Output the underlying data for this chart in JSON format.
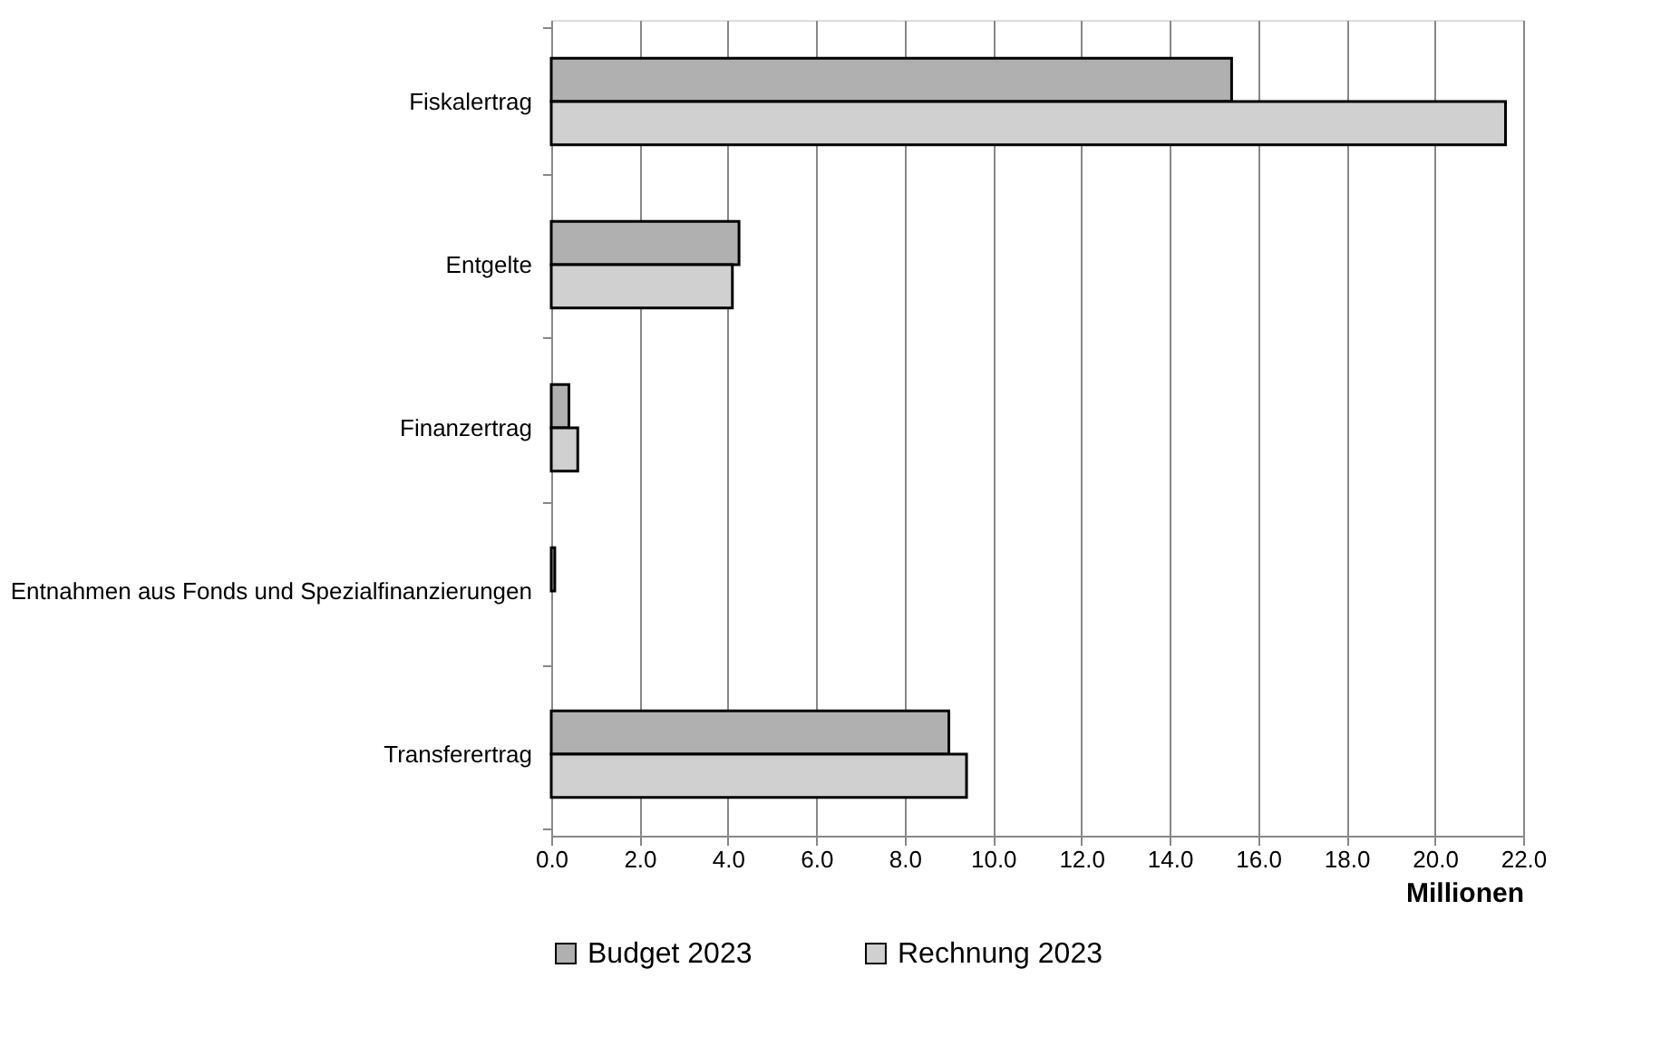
{
  "chart_data": {
    "type": "bar",
    "orientation": "horizontal",
    "xlabel": "Millionen",
    "categories": [
      "Fiskalertrag",
      "Entgelte",
      "Finanzertrag",
      "Entnahmen aus Fonds und Spezialfinanzierungen",
      "Transferertrag"
    ],
    "series": [
      {
        "name": "Budget 2023",
        "color": "#b0b0b0",
        "values": [
          15.4,
          4.25,
          0.4,
          0.08,
          9.0
        ]
      },
      {
        "name": "Rechnung 2023",
        "color": "#d0d0d0",
        "values": [
          21.6,
          4.1,
          0.6,
          null,
          9.4
        ]
      }
    ],
    "xlim": [
      0,
      22
    ],
    "xticks": [
      {
        "value": 0,
        "label": "0.0"
      },
      {
        "value": 2,
        "label": "2.0"
      },
      {
        "value": 4,
        "label": "4.0"
      },
      {
        "value": 6,
        "label": "6.0"
      },
      {
        "value": 8,
        "label": "8.0"
      },
      {
        "value": 10,
        "label": "10.0"
      },
      {
        "value": 12,
        "label": "12.0"
      },
      {
        "value": 14,
        "label": "14.0"
      },
      {
        "value": 16,
        "label": "16.0"
      },
      {
        "value": 18,
        "label": "18.0"
      },
      {
        "value": 20,
        "label": "20.0"
      },
      {
        "value": 22,
        "label": "22.0"
      }
    ],
    "grid": "x",
    "legend": "bottom"
  }
}
